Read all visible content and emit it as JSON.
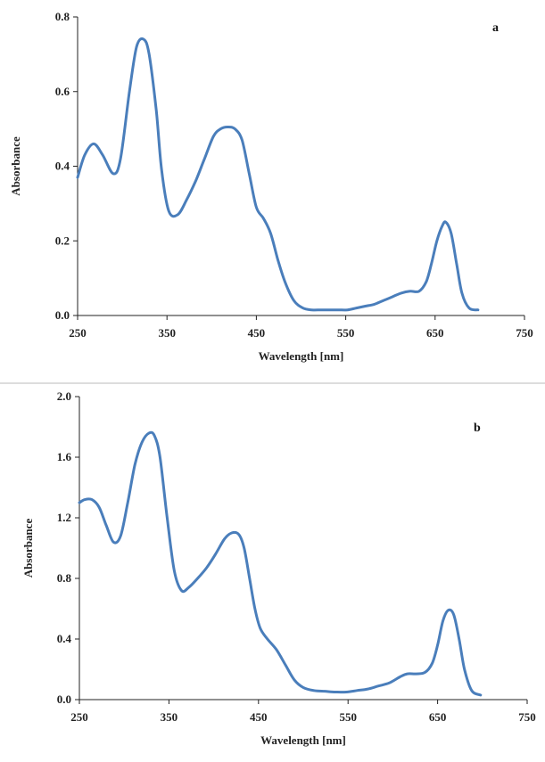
{
  "chart_data": [
    {
      "type": "line",
      "panel_label": "a",
      "xlabel": "Wavelength [nm]",
      "ylabel": "Absorbance",
      "xlim": [
        250,
        750
      ],
      "ylim": [
        0.0,
        0.8
      ],
      "xticks": [
        "250",
        "350",
        "450",
        "550",
        "650",
        "750"
      ],
      "yticks": [
        "0.0",
        "0.2",
        "0.4",
        "0.6",
        "0.8"
      ],
      "grid": false,
      "series": [
        {
          "color": "#4a7ebb",
          "x": [
            250,
            258,
            268,
            278,
            290,
            298,
            308,
            316,
            324,
            330,
            338,
            344,
            352,
            362,
            372,
            382,
            392,
            402,
            410,
            418,
            426,
            434,
            442,
            450,
            458,
            466,
            474,
            482,
            492,
            502,
            512,
            522,
            532,
            542,
            552,
            562,
            572,
            582,
            592,
            602,
            612,
            622,
            632,
            640,
            646,
            652,
            658,
            662,
            668,
            674,
            680,
            688,
            698
          ],
          "y": [
            0.37,
            0.43,
            0.46,
            0.43,
            0.38,
            0.42,
            0.6,
            0.72,
            0.74,
            0.7,
            0.55,
            0.39,
            0.28,
            0.27,
            0.31,
            0.36,
            0.42,
            0.48,
            0.5,
            0.505,
            0.5,
            0.47,
            0.38,
            0.29,
            0.26,
            0.22,
            0.15,
            0.09,
            0.04,
            0.02,
            0.015,
            0.015,
            0.015,
            0.015,
            0.015,
            0.02,
            0.025,
            0.03,
            0.04,
            0.05,
            0.06,
            0.065,
            0.065,
            0.09,
            0.14,
            0.2,
            0.24,
            0.25,
            0.22,
            0.14,
            0.06,
            0.02,
            0.015
          ]
        }
      ]
    },
    {
      "type": "line",
      "panel_label": "b",
      "xlabel": "Wavelength [nm]",
      "ylabel": "Absorbance",
      "xlim": [
        250,
        750
      ],
      "ylim": [
        0.0,
        2.0
      ],
      "xticks": [
        "250",
        "350",
        "450",
        "550",
        "650",
        "750"
      ],
      "yticks": [
        "0.0",
        "0.4",
        "0.8",
        "1.2",
        "1.6",
        "2.0"
      ],
      "grid": false,
      "series": [
        {
          "color": "#4a7ebb",
          "x": [
            250,
            256,
            264,
            272,
            280,
            288,
            296,
            304,
            312,
            320,
            328,
            334,
            340,
            348,
            356,
            364,
            372,
            382,
            392,
            402,
            412,
            420,
            428,
            434,
            440,
            446,
            452,
            460,
            470,
            480,
            490,
            500,
            512,
            524,
            536,
            548,
            560,
            572,
            584,
            596,
            608,
            616,
            626,
            636,
            644,
            650,
            656,
            662,
            668,
            674,
            680,
            688,
            698
          ],
          "y": [
            1.3,
            1.32,
            1.32,
            1.27,
            1.15,
            1.04,
            1.08,
            1.3,
            1.55,
            1.7,
            1.76,
            1.74,
            1.6,
            1.2,
            0.85,
            0.72,
            0.74,
            0.8,
            0.87,
            0.96,
            1.06,
            1.1,
            1.09,
            1.0,
            0.8,
            0.6,
            0.47,
            0.4,
            0.33,
            0.23,
            0.13,
            0.08,
            0.06,
            0.055,
            0.05,
            0.05,
            0.06,
            0.07,
            0.09,
            0.11,
            0.15,
            0.17,
            0.17,
            0.18,
            0.24,
            0.36,
            0.52,
            0.59,
            0.56,
            0.4,
            0.2,
            0.06,
            0.03
          ]
        }
      ]
    }
  ]
}
